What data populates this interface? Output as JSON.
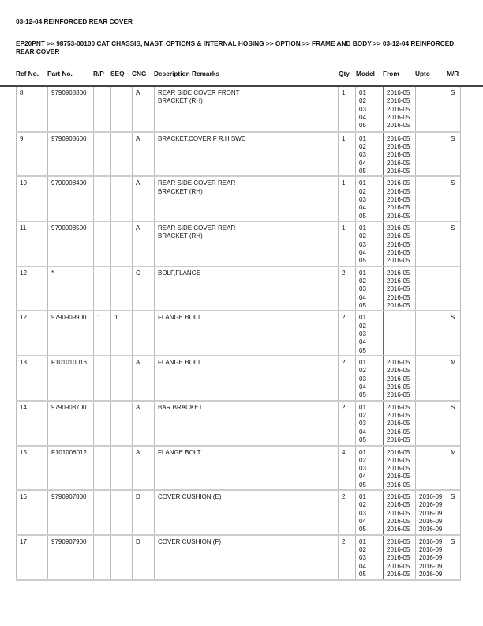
{
  "title": "03-12-04 REINFORCED REAR COVER",
  "breadcrumb": "EP20PNT >> 98753-00100 CAT CHASSIS, MAST, OPTIONS & INTERNAL HOSING >> OPTION >> FRAME AND BODY >> 03-12-04 REINFORCED REAR COVER",
  "columns": [
    "Ref No.",
    "Part No.",
    "R/P",
    "SEQ",
    "CNG",
    "Description Remarks",
    "Qty",
    "Model",
    "From",
    "Upto",
    "M/R"
  ],
  "rows": [
    {
      "ref": "8",
      "part": "9790908300",
      "rp": "",
      "seq": "",
      "cng": "A",
      "desc": "REAR SIDE COVER FRONT\nBRACKET (RH)",
      "qty": "1",
      "models": [
        "01",
        "02",
        "03",
        "04",
        "05"
      ],
      "from": [
        "2016-05",
        "2016-05",
        "2016-05",
        "2016-05",
        "2016-05"
      ],
      "upto": [],
      "mr": "S"
    },
    {
      "ref": "9",
      "part": "9790908600",
      "rp": "",
      "seq": "",
      "cng": "A",
      "desc": "BRACKET,COVER F R.H SWE",
      "qty": "1",
      "models": [
        "01",
        "02",
        "03",
        "04",
        "05"
      ],
      "from": [
        "2016-05",
        "2016-05",
        "2016-05",
        "2016-05",
        "2016-05"
      ],
      "upto": [],
      "mr": "S"
    },
    {
      "ref": "10",
      "part": "9790908400",
      "rp": "",
      "seq": "",
      "cng": "A",
      "desc": "REAR SIDE COVER REAR\nBRACKET (RH)",
      "qty": "1",
      "models": [
        "01",
        "02",
        "03",
        "04",
        "05"
      ],
      "from": [
        "2016-05",
        "2016-05",
        "2016-05",
        "2016-05",
        "2016-05"
      ],
      "upto": [],
      "mr": "S"
    },
    {
      "ref": "11",
      "part": "9790908500",
      "rp": "",
      "seq": "",
      "cng": "A",
      "desc": "REAR SIDE COVER REAR\nBRACKET (RH)",
      "qty": "1",
      "models": [
        "01",
        "02",
        "03",
        "04",
        "05"
      ],
      "from": [
        "2016-05",
        "2016-05",
        "2016-05",
        "2016-05",
        "2016-05"
      ],
      "upto": [],
      "mr": "S"
    },
    {
      "ref": "12",
      "part": "*",
      "rp": "",
      "seq": "",
      "cng": "C",
      "desc": " BOLF,FLANGE",
      "qty": "2",
      "models": [
        "01",
        "02",
        "03",
        "04",
        "05"
      ],
      "from": [
        "2016-05",
        "2016-05",
        "2016-05",
        "2016-05",
        "2016-05"
      ],
      "upto": [],
      "mr": ""
    },
    {
      "ref": "12",
      "part": "9790909900",
      "rp": "1",
      "seq": "1",
      "cng": "",
      "desc": "FLANGE BOLT",
      "qty": "2",
      "models": [
        "01",
        "02",
        "03",
        "04",
        "05"
      ],
      "from": [],
      "upto": [],
      "mr": "S"
    },
    {
      "ref": "13",
      "part": "F101010016",
      "rp": "",
      "seq": "",
      "cng": "A",
      "desc": "FLANGE BOLT",
      "qty": "2",
      "models": [
        "01",
        "02",
        "03",
        "04",
        "05"
      ],
      "from": [
        "2016-05",
        "2016-05",
        "2016-05",
        "2016-05",
        "2016-05"
      ],
      "upto": [],
      "mr": "M"
    },
    {
      "ref": "14",
      "part": "9790908700",
      "rp": "",
      "seq": "",
      "cng": "A",
      "desc": "BAR BRACKET",
      "qty": "2",
      "models": [
        "01",
        "02",
        "03",
        "04",
        "05"
      ],
      "from": [
        "2016-05",
        "2016-05",
        "2016-05",
        "2016-05",
        "2016-05"
      ],
      "upto": [],
      "mr": "S"
    },
    {
      "ref": "15",
      "part": "F101006012",
      "rp": "",
      "seq": "",
      "cng": "A",
      "desc": "FLANGE BOLT",
      "qty": "4",
      "models": [
        "01",
        "02",
        "03",
        "04",
        "05"
      ],
      "from": [
        "2016-05",
        "2016-05",
        "2016-05",
        "2016-05",
        "2016-05"
      ],
      "upto": [],
      "mr": "M"
    },
    {
      "ref": "16",
      "part": "9790907800",
      "rp": "",
      "seq": "",
      "cng": "D",
      "desc": "COVER CUSHION (E)",
      "qty": "2",
      "models": [
        "01",
        "02",
        "03",
        "04",
        "05"
      ],
      "from": [
        "2016-05",
        "2016-05",
        "2016-05",
        "2016-05",
        "2016-05"
      ],
      "upto": [
        "2016-09",
        "2016-09",
        "2016-09",
        "2016-09",
        "2016-09"
      ],
      "mr": "S"
    },
    {
      "ref": "17",
      "part": "9790907900",
      "rp": "",
      "seq": "",
      "cng": "D",
      "desc": "COVER CUSHION (F)",
      "qty": "2",
      "models": [
        "01",
        "02",
        "03",
        "04",
        "05"
      ],
      "from": [
        "2016-05",
        "2016-05",
        "2016-05",
        "2016-05",
        "2016-05"
      ],
      "upto": [
        "2016-09",
        "2016-09",
        "2016-09",
        "2016-09",
        "2016-09"
      ],
      "mr": "S"
    }
  ]
}
